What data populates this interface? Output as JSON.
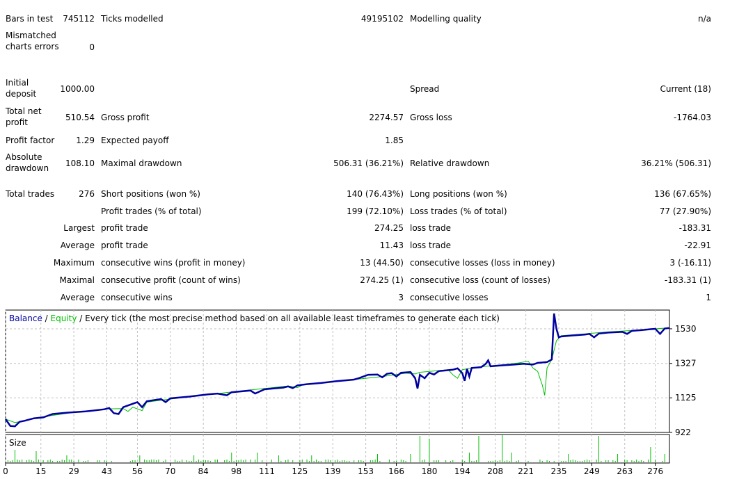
{
  "report": {
    "bars_label": "Bars in test",
    "bars_value": "745112",
    "ticks_label": "Ticks modelled",
    "ticks_value": "49195102",
    "quality_label": "Modelling quality",
    "quality_value": "n/a",
    "mismatch_label": "Mismatched charts errors",
    "mismatch_value": "0",
    "deposit_label": "Initial deposit",
    "deposit_value": "1000.00",
    "spread_label": "Spread",
    "spread_value": "Current (18)",
    "netprofit_label": "Total net profit",
    "netprofit_value": "510.54",
    "grossprofit_label": "Gross profit",
    "grossprofit_value": "2274.57",
    "grossloss_label": "Gross loss",
    "grossloss_value": "-1764.03",
    "pf_label": "Profit factor",
    "pf_value": "1.29",
    "payoff_label": "Expected payoff",
    "payoff_value": "1.85",
    "absdd_label": "Absolute drawdown",
    "absdd_value": "108.10",
    "maxdd_label": "Maximal drawdown",
    "maxdd_value": "506.31 (36.21%)",
    "reldd_label": "Relative drawdown",
    "reldd_value": "36.21% (506.31)",
    "trades_label": "Total trades",
    "trades_value": "276",
    "short_label": "Short positions (won %)",
    "short_value": "140 (76.43%)",
    "long_label": "Long positions (won %)",
    "long_value": "136 (67.65%)",
    "profit_trades_label": "Profit trades (% of total)",
    "profit_trades_value": "199 (72.10%)",
    "loss_trades_label": "Loss trades (% of total)",
    "loss_trades_value": "77 (27.90%)",
    "largest_label": "Largest",
    "largest_profit_label": "profit trade",
    "largest_profit_value": "274.25",
    "largest_loss_label": "loss trade",
    "largest_loss_value": "-183.31",
    "average_label": "Average",
    "average_profit_label": "profit trade",
    "average_profit_value": "11.43",
    "average_loss_label": "loss trade",
    "average_loss_value": "-22.91",
    "maximum_label": "Maximum",
    "max_wins_label": "consecutive wins (profit in money)",
    "max_wins_value": "13 (44.50)",
    "max_losses_label": "consecutive losses (loss in money)",
    "max_losses_value": "3 (-16.11)",
    "maximal_label": "Maximal",
    "maximal_profit_label": "consecutive profit (count of wins)",
    "maximal_profit_value": "274.25 (1)",
    "maximal_loss_label": "consecutive loss (count of losses)",
    "maximal_loss_value": "-183.31 (1)",
    "avg2_label": "Average",
    "avg_wins_label": "consecutive wins",
    "avg_wins_value": "3",
    "avg_losses_label": "consecutive losses",
    "avg_losses_value": "1"
  },
  "chart_data": {
    "type": "line",
    "legend": {
      "balance": "Balance",
      "sep1": " / ",
      "equity": "Equity",
      "sep2": " / ",
      "rest": "Every tick (the most precise method based on all available least timeframes to generate each tick)"
    },
    "colors": {
      "balance": "#0000a0",
      "equity": "#00c000",
      "grid": "#c0c0c0",
      "size": "#00c000"
    },
    "ylabels": [
      "1530",
      "1327",
      "1125",
      "922"
    ],
    "ylim": [
      922,
      1640
    ],
    "xlim": [
      0,
      282
    ],
    "xticks": [
      0,
      15,
      29,
      43,
      56,
      70,
      84,
      98,
      111,
      125,
      139,
      153,
      166,
      180,
      194,
      208,
      221,
      235,
      249,
      263,
      276
    ],
    "size_label": "Size",
    "balance": [
      [
        0,
        1000
      ],
      [
        2,
        960
      ],
      [
        4,
        958
      ],
      [
        6,
        985
      ],
      [
        8,
        990
      ],
      [
        12,
        1005
      ],
      [
        16,
        1010
      ],
      [
        20,
        1030
      ],
      [
        26,
        1038
      ],
      [
        34,
        1045
      ],
      [
        42,
        1058
      ],
      [
        44,
        1065
      ],
      [
        46,
        1035
      ],
      [
        48,
        1030
      ],
      [
        50,
        1070
      ],
      [
        54,
        1090
      ],
      [
        56,
        1100
      ],
      [
        58,
        1070
      ],
      [
        60,
        1105
      ],
      [
        66,
        1118
      ],
      [
        68,
        1100
      ],
      [
        70,
        1122
      ],
      [
        78,
        1132
      ],
      [
        86,
        1145
      ],
      [
        90,
        1150
      ],
      [
        94,
        1140
      ],
      [
        96,
        1158
      ],
      [
        104,
        1168
      ],
      [
        106,
        1150
      ],
      [
        110,
        1175
      ],
      [
        118,
        1185
      ],
      [
        120,
        1192
      ],
      [
        122,
        1182
      ],
      [
        124,
        1198
      ],
      [
        128,
        1205
      ],
      [
        134,
        1212
      ],
      [
        140,
        1222
      ],
      [
        148,
        1232
      ],
      [
        150,
        1240
      ],
      [
        154,
        1260
      ],
      [
        158,
        1262
      ],
      [
        160,
        1245
      ],
      [
        162,
        1266
      ],
      [
        164,
        1270
      ],
      [
        166,
        1250
      ],
      [
        168,
        1272
      ],
      [
        172,
        1276
      ],
      [
        174,
        1240
      ],
      [
        175,
        1180
      ],
      [
        176,
        1260
      ],
      [
        178,
        1240
      ],
      [
        180,
        1272
      ],
      [
        182,
        1262
      ],
      [
        184,
        1282
      ],
      [
        190,
        1290
      ],
      [
        192,
        1298
      ],
      [
        194,
        1270
      ],
      [
        195,
        1225
      ],
      [
        196,
        1295
      ],
      [
        197,
        1250
      ],
      [
        198,
        1300
      ],
      [
        202,
        1305
      ],
      [
        204,
        1325
      ],
      [
        205,
        1345
      ],
      [
        206,
        1310
      ],
      [
        210,
        1315
      ],
      [
        216,
        1320
      ],
      [
        220,
        1325
      ],
      [
        224,
        1320
      ],
      [
        226,
        1330
      ],
      [
        230,
        1335
      ],
      [
        232,
        1350
      ],
      [
        233,
        1620
      ],
      [
        234,
        1530
      ],
      [
        235,
        1480
      ],
      [
        236,
        1485
      ],
      [
        240,
        1490
      ],
      [
        246,
        1496
      ],
      [
        248,
        1500
      ],
      [
        250,
        1480
      ],
      [
        252,
        1502
      ],
      [
        256,
        1508
      ],
      [
        262,
        1512
      ],
      [
        264,
        1500
      ],
      [
        266,
        1518
      ],
      [
        270,
        1522
      ],
      [
        274,
        1528
      ],
      [
        276,
        1530
      ],
      [
        278,
        1500
      ],
      [
        280,
        1532
      ],
      [
        282,
        1535
      ]
    ],
    "equity": [
      [
        0,
        1000
      ],
      [
        4,
        980
      ],
      [
        8,
        990
      ],
      [
        14,
        1010
      ],
      [
        20,
        1022
      ],
      [
        28,
        1038
      ],
      [
        36,
        1048
      ],
      [
        42,
        1060
      ],
      [
        50,
        1062
      ],
      [
        52,
        1045
      ],
      [
        54,
        1070
      ],
      [
        58,
        1050
      ],
      [
        60,
        1100
      ],
      [
        70,
        1118
      ],
      [
        80,
        1135
      ],
      [
        90,
        1150
      ],
      [
        100,
        1165
      ],
      [
        110,
        1180
      ],
      [
        120,
        1195
      ],
      [
        124,
        1185
      ],
      [
        126,
        1200
      ],
      [
        140,
        1222
      ],
      [
        150,
        1235
      ],
      [
        160,
        1250
      ],
      [
        170,
        1270
      ],
      [
        174,
        1265
      ],
      [
        176,
        1275
      ],
      [
        188,
        1290
      ],
      [
        190,
        1260
      ],
      [
        192,
        1240
      ],
      [
        194,
        1290
      ],
      [
        198,
        1300
      ],
      [
        204,
        1310
      ],
      [
        212,
        1320
      ],
      [
        218,
        1330
      ],
      [
        222,
        1340
      ],
      [
        224,
        1300
      ],
      [
        226,
        1280
      ],
      [
        228,
        1200
      ],
      [
        229,
        1140
      ],
      [
        230,
        1300
      ],
      [
        232,
        1350
      ],
      [
        234,
        1460
      ],
      [
        236,
        1490
      ],
      [
        246,
        1500
      ],
      [
        256,
        1512
      ],
      [
        266,
        1520
      ],
      [
        276,
        1530
      ],
      [
        282,
        1536
      ]
    ]
  }
}
